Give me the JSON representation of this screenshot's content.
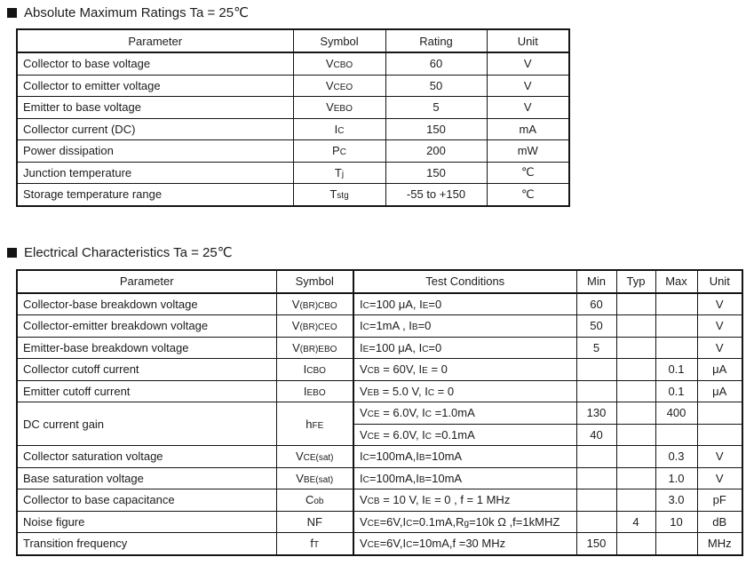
{
  "sections": [
    {
      "title": "Absolute Maximum Ratings Ta = 25℃",
      "columns": [
        "Parameter",
        "Symbol",
        "Rating",
        "Unit"
      ],
      "rows": [
        {
          "param": "Collector to base voltage",
          "symbol": "V_{CBO}",
          "rating": "60",
          "unit": "V"
        },
        {
          "param": "Collector to emitter voltage",
          "symbol": "V_{CEO}",
          "rating": "50",
          "unit": "V"
        },
        {
          "param": "Emitter to base voltage",
          "symbol": "V_{EBO}",
          "rating": "5",
          "unit": "V"
        },
        {
          "param": "Collector current (DC)",
          "symbol": "I_{C}",
          "rating": "150",
          "unit": "mA"
        },
        {
          "param": "Power dissipation",
          "symbol": "P_{C}",
          "rating": "200",
          "unit": "mW"
        },
        {
          "param": "Junction temperature",
          "symbol": "T_{j}",
          "rating": "150",
          "unit": "℃"
        },
        {
          "param": "Storage temperature range",
          "symbol": "T_{stg}",
          "rating": "-55 to +150",
          "unit": "℃"
        }
      ]
    },
    {
      "title": "Electrical Characteristics Ta = 25℃",
      "columns": [
        "Parameter",
        "Symbol",
        "Test Conditions",
        "Min",
        "Typ",
        "Max",
        "Unit"
      ],
      "rows": [
        {
          "param": "Collector-base breakdown voltage",
          "symbol": "V_{(BR)CBO}",
          "cond": "I_{C}=100 μA, I_{E}=0",
          "min": "60",
          "typ": "",
          "max": "",
          "unit": "V"
        },
        {
          "param": "Collector-emitter breakdown voltage",
          "symbol": "V_{(BR)CEO}",
          "cond": "I_{C}=1mA , I_{B}=0",
          "min": "50",
          "typ": "",
          "max": "",
          "unit": "V"
        },
        {
          "param": "Emitter-base breakdown voltage",
          "symbol": "V_{(BR)EBO}",
          "cond": "I_{E}=100 μA, I_{C}=0",
          "min": "5",
          "typ": "",
          "max": "",
          "unit": "V"
        },
        {
          "param": "Collector cutoff current",
          "symbol": "I_{CBO}",
          "cond": "V_{CB} = 60V, I_{E} = 0",
          "min": "",
          "typ": "",
          "max": "0.1",
          "unit": "μA"
        },
        {
          "param": "Emitter cutoff current",
          "symbol": "I_{EBO}",
          "cond": "V_{EB} = 5.0 V, I_{C} = 0",
          "min": "",
          "typ": "",
          "max": "0.1",
          "unit": "μA"
        },
        {
          "param": "DC current gain",
          "rowspan": 2,
          "symbol": "h_{FE}",
          "cond": "V_{CE} = 6.0V, I_{C} =1.0mA",
          "min": "130",
          "typ": "",
          "max": "400",
          "unit": ""
        },
        {
          "param": null,
          "symbol": null,
          "cond": "V_{CE} = 6.0V, I_{C} =0.1mA",
          "min": "40",
          "typ": "",
          "max": "",
          "unit": ""
        },
        {
          "param": "Collector saturation voltage",
          "symbol": "V_{CE(sat)}",
          "cond": "I_{C}=100mA,I_{B}=10mA",
          "min": "",
          "typ": "",
          "max": "0.3",
          "unit": "V"
        },
        {
          "param": "Base saturation voltage",
          "symbol": "V_{BE(sat)}",
          "cond": "I_{C}=100mA,I_{B}=10mA",
          "min": "",
          "typ": "",
          "max": "1.0",
          "unit": "V"
        },
        {
          "param": "Collector to base  capacitance",
          "symbol": "C_{ob}",
          "cond": "V_{CB} = 10 V, I_{E} = 0 , f = 1 MHz",
          "min": "",
          "typ": "",
          "max": "3.0",
          "unit": "pF"
        },
        {
          "param": "Noise figure",
          "symbol": "NF",
          "cond": "V_{CE}=6V,I_{C}=0.1mA,R_{g}=10k Ω ,f=1kMHZ",
          "min": "",
          "typ": "4",
          "max": "10",
          "unit": "dB"
        },
        {
          "param": "Transition frequency",
          "symbol": "f_{T}",
          "cond": "V_{CE}=6V,I_{C}=10mA,f =30 MHz",
          "min": "150",
          "typ": "",
          "max": "",
          "unit": "MHz"
        }
      ]
    }
  ]
}
